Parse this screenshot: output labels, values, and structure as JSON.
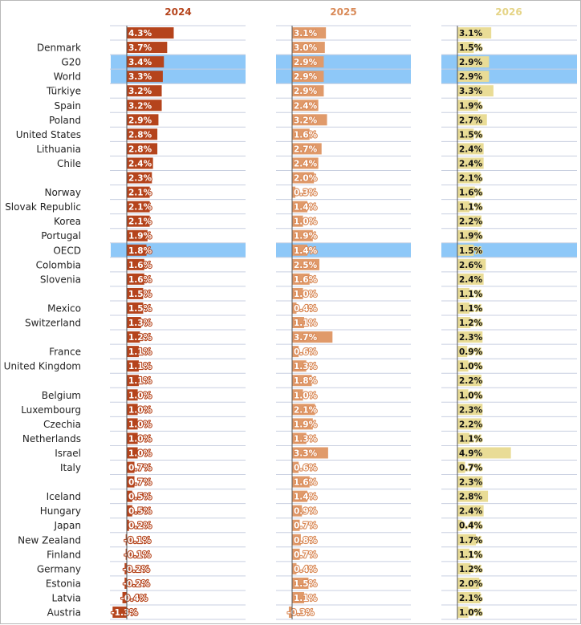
{
  "chart_data": {
    "type": "bar",
    "orientation": "horizontal",
    "categories": [
      "",
      "Denmark",
      "G20",
      "World",
      "Türkiye",
      "Spain",
      "Poland",
      "United States",
      "Lithuania",
      "Chile",
      "",
      "Norway",
      "Slovak Republic",
      "Korea",
      "Portugal",
      "OECD",
      "Colombia",
      "Slovenia",
      "",
      "Mexico",
      "Switzerland",
      "",
      "France",
      "United Kingdom",
      "",
      "Belgium",
      "Luxembourg",
      "Czechia",
      "Netherlands",
      "Israel",
      "Italy",
      "",
      "Iceland",
      "Hungary",
      "Japan",
      "New Zealand",
      "Finland",
      "Germany",
      "Estonia",
      "Latvia",
      "Austria"
    ],
    "highlighted": [
      "G20",
      "World",
      "OECD"
    ],
    "series": [
      {
        "name": "2024",
        "color": "#b5441c",
        "values": [
          4.3,
          3.7,
          3.4,
          3.3,
          3.2,
          3.2,
          2.9,
          2.8,
          2.8,
          2.4,
          2.3,
          2.1,
          2.1,
          2.1,
          1.9,
          1.8,
          1.6,
          1.6,
          1.5,
          1.5,
          1.3,
          1.2,
          1.1,
          1.1,
          1.1,
          1.0,
          1.0,
          1.0,
          1.0,
          1.0,
          0.7,
          0.7,
          0.5,
          0.5,
          0.2,
          -0.1,
          -0.1,
          -0.2,
          -0.2,
          -0.4,
          -1.3
        ]
      },
      {
        "name": "2025",
        "color": "#e09a6a",
        "values": [
          3.1,
          3.0,
          2.9,
          2.9,
          2.9,
          2.4,
          3.2,
          1.6,
          2.7,
          2.4,
          2.0,
          0.3,
          1.4,
          1.0,
          1.9,
          1.4,
          2.5,
          1.6,
          1.0,
          0.4,
          1.1,
          3.7,
          0.6,
          1.3,
          1.8,
          1.0,
          2.1,
          1.9,
          1.3,
          3.3,
          0.6,
          1.6,
          1.4,
          0.9,
          0.7,
          0.8,
          0.7,
          0.4,
          1.5,
          1.1,
          -0.3
        ]
      },
      {
        "name": "2026",
        "color": "#e9dc96",
        "values": [
          3.1,
          1.5,
          2.9,
          2.9,
          3.3,
          1.9,
          2.7,
          1.5,
          2.4,
          2.4,
          2.1,
          1.6,
          1.1,
          2.2,
          1.9,
          1.5,
          2.6,
          2.4,
          1.1,
          1.1,
          1.2,
          2.3,
          0.9,
          1.0,
          2.2,
          1.0,
          2.3,
          2.2,
          1.1,
          4.9,
          0.7,
          2.3,
          2.8,
          2.4,
          0.4,
          1.7,
          1.1,
          1.2,
          2.0,
          2.1,
          1.0
        ]
      }
    ],
    "value_labels": "value with % suffix, one decimal",
    "grid": true,
    "highlight_color": "#8ec8f8"
  }
}
